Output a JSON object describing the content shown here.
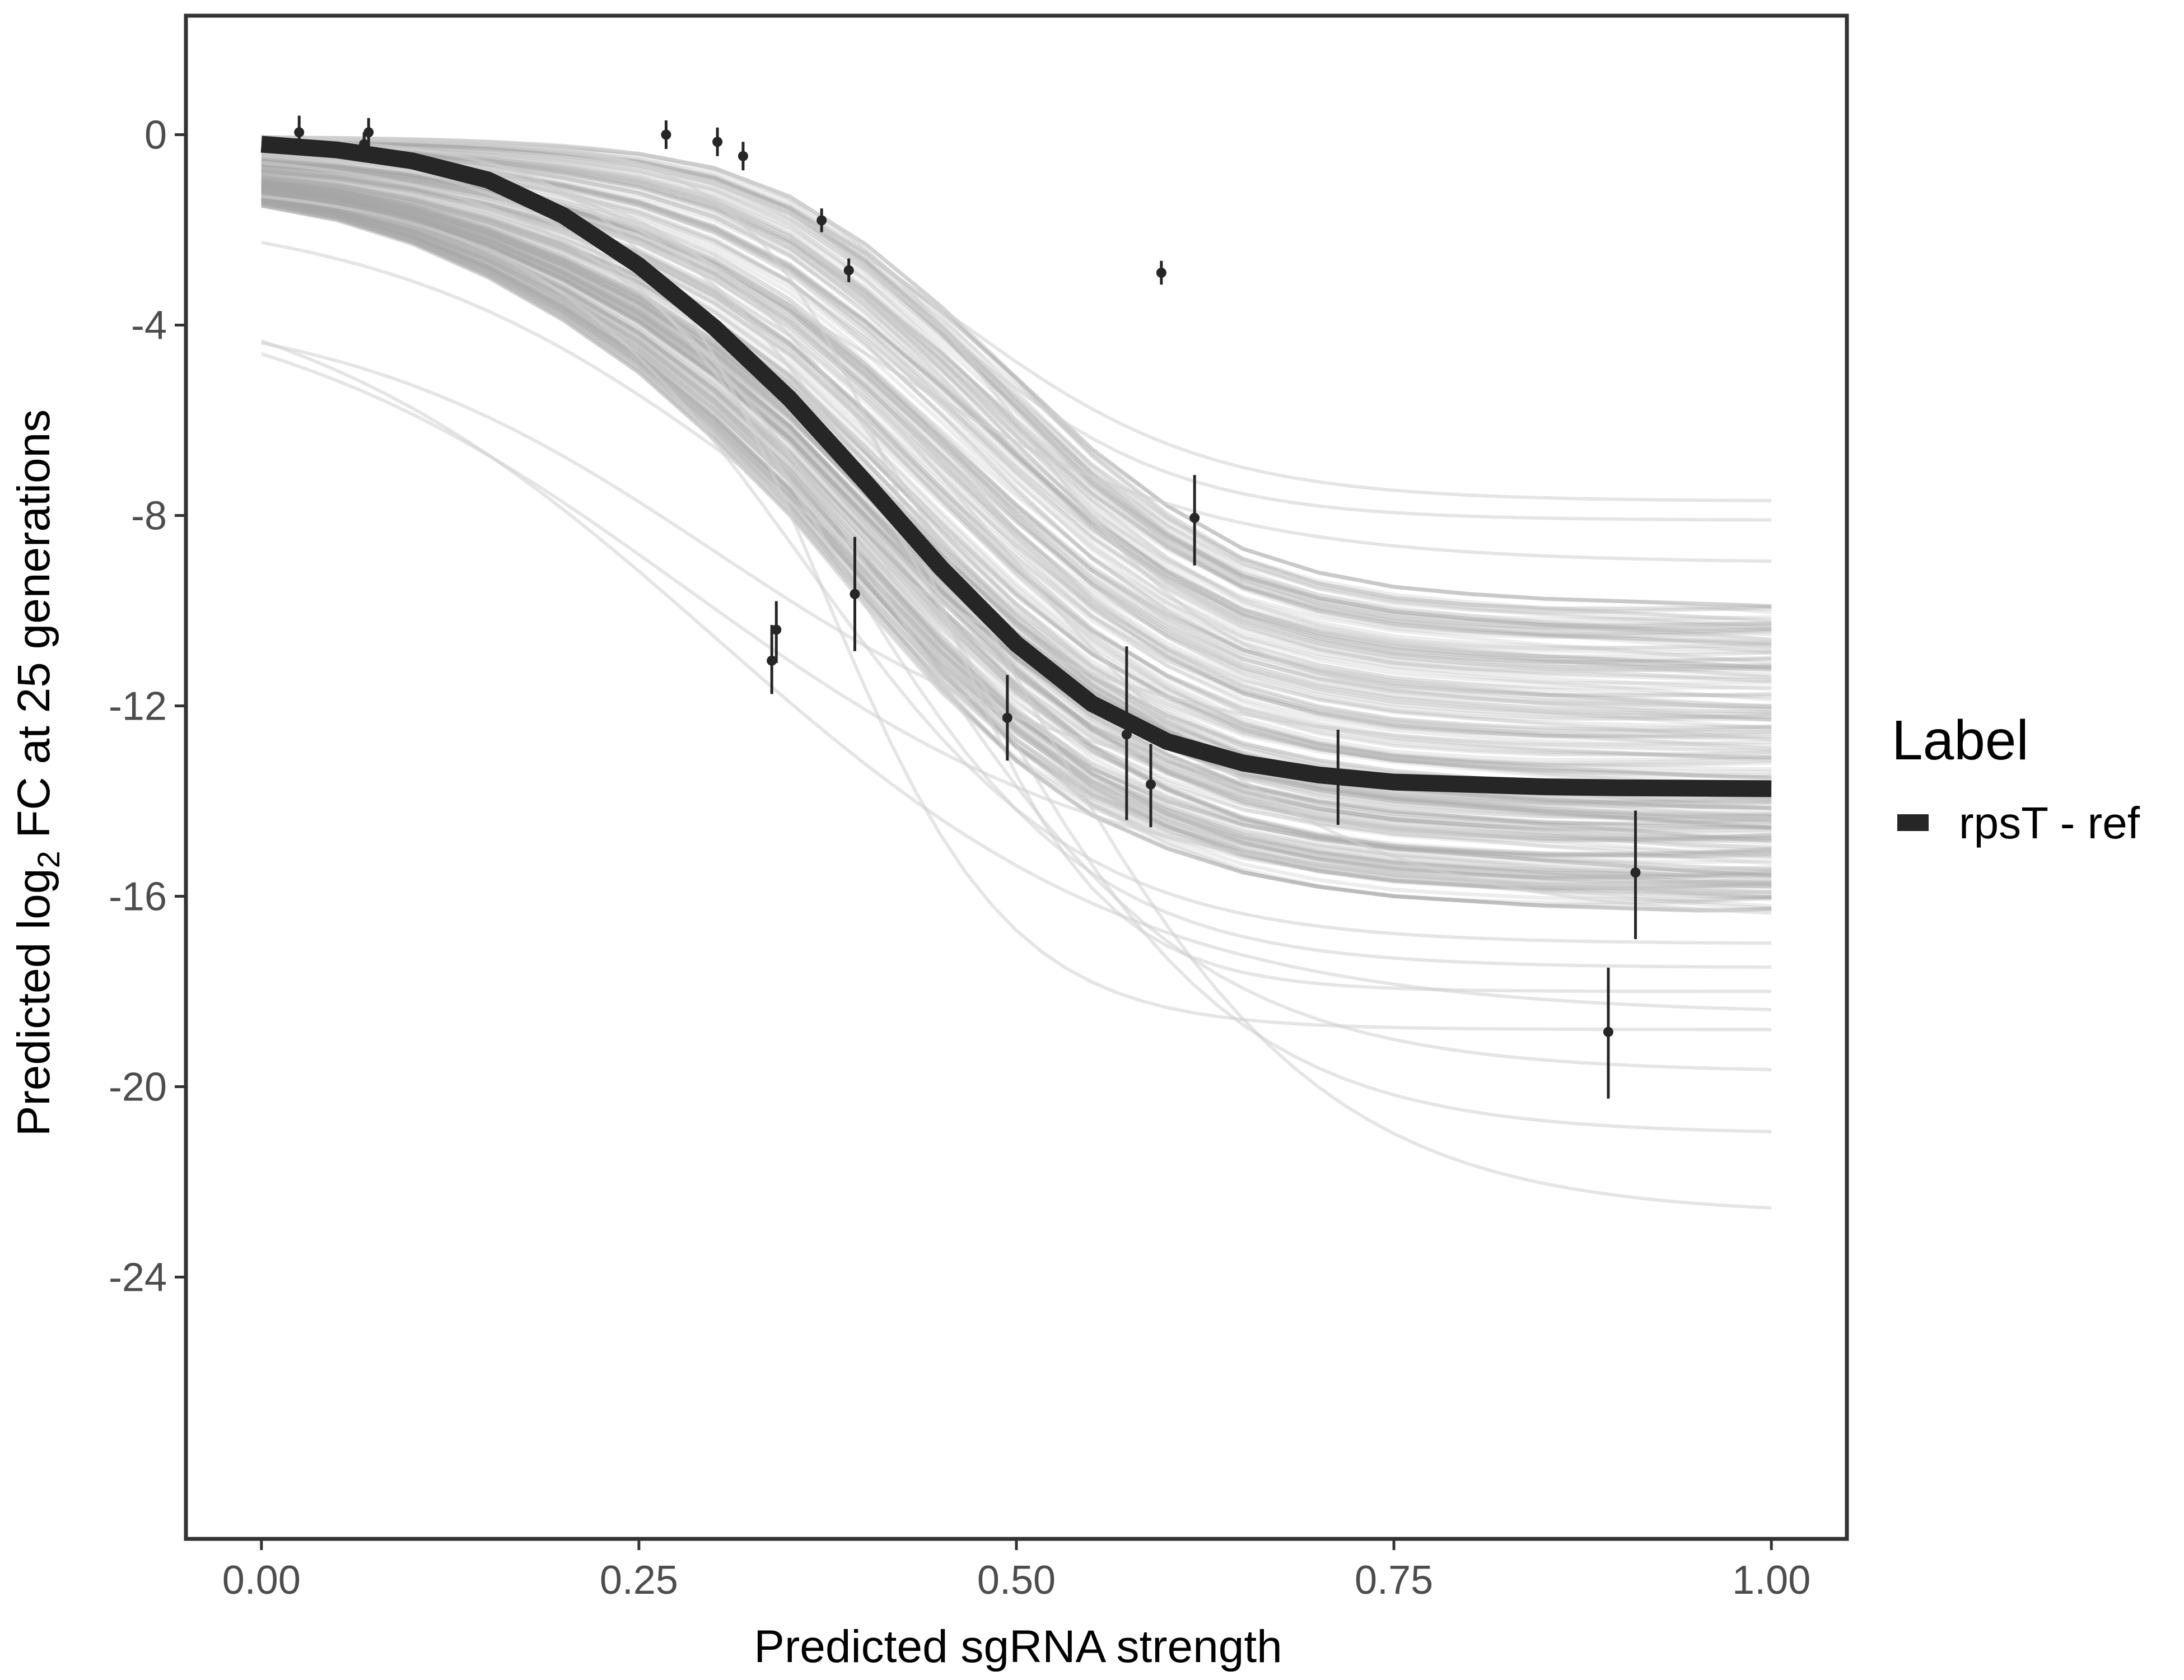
{
  "chart_data": {
    "type": "line",
    "title": "",
    "xlabel": "Predicted sgRNA strength",
    "ylabel_parts": {
      "pre": "Predicted  log",
      "sub": "2",
      "post": " FC at 25 generations"
    },
    "xlim": [
      -0.05,
      1.05
    ],
    "ylim": [
      -29.5,
      2.5
    ],
    "x_ticks": [
      0,
      0.25,
      0.5,
      0.75,
      1
    ],
    "x_tick_labels": [
      "0.00",
      "0.25",
      "0.50",
      "0.75",
      "1.00"
    ],
    "y_ticks": [
      0,
      -4,
      -8,
      -12,
      -16,
      -20,
      -24
    ],
    "y_tick_labels": [
      "0",
      "-4",
      "-8",
      "-12",
      "-16",
      "-20",
      "-24"
    ],
    "grid": false,
    "legend": {
      "title": "Label",
      "position": "right",
      "entries": [
        {
          "label": "rpsT - ref",
          "color": "#262626"
        }
      ]
    },
    "fit_curve": {
      "name": "rpsT - ref",
      "color": "#262626",
      "x": [
        0,
        0.05,
        0.1,
        0.15,
        0.2,
        0.25,
        0.3,
        0.35,
        0.4,
        0.45,
        0.5,
        0.55,
        0.6,
        0.65,
        0.7,
        0.75,
        0.8,
        0.85,
        0.9,
        0.95,
        1
      ],
      "y": [
        -0.2,
        -0.32,
        -0.55,
        -0.95,
        -1.7,
        -2.75,
        -4.05,
        -5.55,
        -7.3,
        -9.1,
        -10.7,
        -11.95,
        -12.75,
        -13.2,
        -13.45,
        -13.6,
        -13.65,
        -13.7,
        -13.72,
        -13.73,
        -13.74
      ]
    },
    "posterior_band": {
      "color": "#a6a6a6",
      "x": [
        0,
        0.05,
        0.1,
        0.15,
        0.2,
        0.25,
        0.3,
        0.35,
        0.4,
        0.45,
        0.5,
        0.55,
        0.6,
        0.65,
        0.7,
        0.75,
        0.8,
        0.85,
        0.9,
        0.95,
        1
      ],
      "lower": [
        -1.5,
        -1.8,
        -2.3,
        -3.0,
        -3.9,
        -5.0,
        -6.4,
        -8.0,
        -9.9,
        -11.7,
        -13.2,
        -14.3,
        -15.0,
        -15.5,
        -15.8,
        -16.0,
        -16.1,
        -16.2,
        -16.25,
        -16.3,
        -16.3
      ],
      "upper": [
        -0.05,
        -0.07,
        -0.1,
        -0.15,
        -0.25,
        -0.4,
        -0.7,
        -1.3,
        -2.3,
        -3.6,
        -5.1,
        -6.6,
        -7.8,
        -8.7,
        -9.2,
        -9.5,
        -9.65,
        -9.75,
        -9.8,
        -9.85,
        -9.9
      ]
    },
    "posterior_draws": [
      {
        "top": -0.2,
        "bottom": -17.5,
        "mid": 0.38,
        "k": 12
      },
      {
        "top": -0.3,
        "bottom": -19.7,
        "mid": 0.42,
        "k": 10
      },
      {
        "top": -0.1,
        "bottom": -21.0,
        "mid": 0.46,
        "k": 11
      },
      {
        "top": -0.1,
        "bottom": -22.7,
        "mid": 0.5,
        "k": 10
      },
      {
        "top": -0.05,
        "bottom": -18.8,
        "mid": 0.37,
        "k": 16
      },
      {
        "top": -2.6,
        "bottom": -18.5,
        "mid": 0.3,
        "k": 7
      },
      {
        "top": -3.0,
        "bottom": -16.0,
        "mid": 0.28,
        "k": 7
      },
      {
        "top": -3.5,
        "bottom": -14.0,
        "mid": 0.3,
        "k": 8
      },
      {
        "top": -0.05,
        "bottom": -7.7,
        "mid": 0.46,
        "k": 12
      },
      {
        "top": -0.05,
        "bottom": -8.1,
        "mid": 0.45,
        "k": 13
      },
      {
        "top": -0.2,
        "bottom": -9.0,
        "mid": 0.4,
        "k": 9
      },
      {
        "top": -1.0,
        "bottom": -17.0,
        "mid": 0.36,
        "k": 11
      },
      {
        "top": -0.05,
        "bottom": -16.5,
        "mid": 0.48,
        "k": 9
      },
      {
        "top": -0.05,
        "bottom": -12.0,
        "mid": 0.5,
        "k": 14
      },
      {
        "top": -1.5,
        "bottom": -13.0,
        "mid": 0.33,
        "k": 8
      },
      {
        "top": -0.05,
        "bottom": -18.0,
        "mid": 0.44,
        "k": 18
      }
    ],
    "points": [
      {
        "x": 0.025,
        "y": 0.05,
        "lo": -0.3,
        "hi": 0.4
      },
      {
        "x": 0.068,
        "y": -0.2,
        "lo": -0.45,
        "hi": 0.05
      },
      {
        "x": 0.071,
        "y": 0.05,
        "lo": -0.3,
        "hi": 0.35
      },
      {
        "x": 0.268,
        "y": 0.0,
        "lo": -0.3,
        "hi": 0.3
      },
      {
        "x": 0.302,
        "y": -0.15,
        "lo": -0.45,
        "hi": 0.15
      },
      {
        "x": 0.319,
        "y": -0.45,
        "lo": -0.75,
        "hi": -0.15
      },
      {
        "x": 0.371,
        "y": -1.8,
        "lo": -2.05,
        "hi": -1.55
      },
      {
        "x": 0.389,
        "y": -2.85,
        "lo": -3.1,
        "hi": -2.6
      },
      {
        "x": 0.338,
        "y": -11.05,
        "lo": -11.75,
        "hi": -10.3
      },
      {
        "x": 0.341,
        "y": -10.4,
        "lo": -11.1,
        "hi": -9.8
      },
      {
        "x": 0.393,
        "y": -9.65,
        "lo": -10.85,
        "hi": -8.45
      },
      {
        "x": 0.596,
        "y": -2.9,
        "lo": -3.15,
        "hi": -2.65
      },
      {
        "x": 0.494,
        "y": -12.25,
        "lo": -13.15,
        "hi": -11.35
      },
      {
        "x": 0.573,
        "y": -12.6,
        "lo": -14.4,
        "hi": -10.75
      },
      {
        "x": 0.589,
        "y": -13.65,
        "lo": -14.55,
        "hi": -12.8
      },
      {
        "x": 0.618,
        "y": -8.05,
        "lo": -9.05,
        "hi": -7.15
      },
      {
        "x": 0.713,
        "y": -13.5,
        "lo": -14.5,
        "hi": -12.5
      },
      {
        "x": 0.892,
        "y": -18.85,
        "lo": -20.25,
        "hi": -17.5
      },
      {
        "x": 0.91,
        "y": -15.5,
        "lo": -16.9,
        "hi": -14.2
      }
    ]
  }
}
